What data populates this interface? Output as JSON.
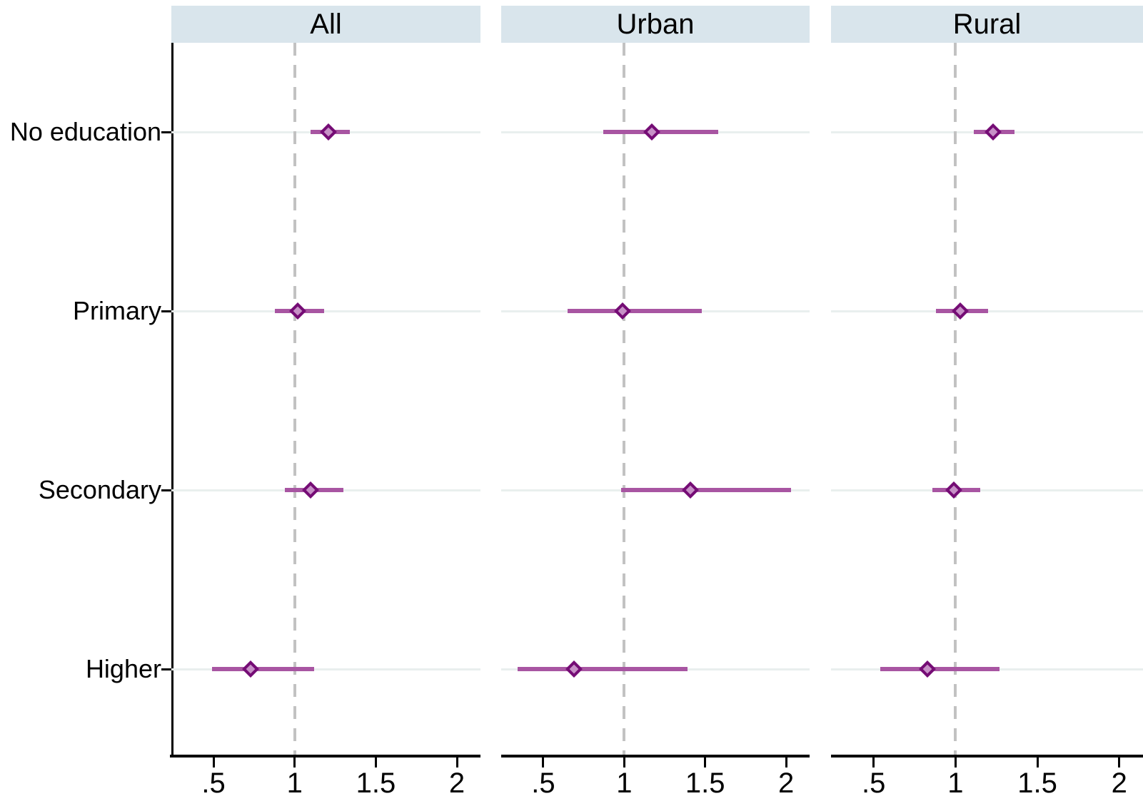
{
  "chart_data": {
    "type": "scatter",
    "subtype": "forest-plot (point estimates with 95% confidence intervals, horizontal)",
    "categories": [
      "No education",
      "Primary",
      "Secondary",
      "Higher"
    ],
    "x_ticks": [
      ".5",
      "1",
      "1.5",
      "2"
    ],
    "x_tick_values": [
      0.5,
      1,
      1.5,
      2
    ],
    "xlim": [
      0.24,
      2.145
    ],
    "reference_line_x": 1,
    "grid": "light horizontal line at each category; dashed vertical reference line at 1",
    "legend": "none",
    "panels": [
      {
        "title": "All",
        "estimates": [
          {
            "category": "No education",
            "or": 1.21,
            "ci_low": 1.1,
            "ci_high": 1.34
          },
          {
            "category": "Primary",
            "or": 1.02,
            "ci_low": 0.88,
            "ci_high": 1.18
          },
          {
            "category": "Secondary",
            "or": 1.1,
            "ci_low": 0.94,
            "ci_high": 1.3
          },
          {
            "category": "Higher",
            "or": 0.73,
            "ci_low": 0.49,
            "ci_high": 1.12
          }
        ]
      },
      {
        "title": "Urban",
        "estimates": [
          {
            "category": "No education",
            "or": 1.17,
            "ci_low": 0.87,
            "ci_high": 1.58
          },
          {
            "category": "Primary",
            "or": 0.99,
            "ci_low": 0.65,
            "ci_high": 1.48
          },
          {
            "category": "Secondary",
            "or": 1.41,
            "ci_low": 0.98,
            "ci_high": 2.03
          },
          {
            "category": "Higher",
            "or": 0.69,
            "ci_low": 0.34,
            "ci_high": 1.39
          }
        ]
      },
      {
        "title": "Rural",
        "estimates": [
          {
            "category": "No education",
            "or": 1.23,
            "ci_low": 1.11,
            "ci_high": 1.36
          },
          {
            "category": "Primary",
            "or": 1.03,
            "ci_low": 0.88,
            "ci_high": 1.2
          },
          {
            "category": "Secondary",
            "or": 0.99,
            "ci_low": 0.86,
            "ci_high": 1.15
          },
          {
            "category": "Higher",
            "or": 0.83,
            "ci_low": 0.54,
            "ci_high": 1.27
          }
        ]
      }
    ],
    "colors": {
      "header_bg": "#d9e5ec",
      "ci_line": "#a855a2",
      "marker_border": "#750c75",
      "marker_fill": "#c791c7",
      "gridline": "#e9efee",
      "reference_line": "#c2c2c2",
      "axis": "#000000"
    }
  }
}
